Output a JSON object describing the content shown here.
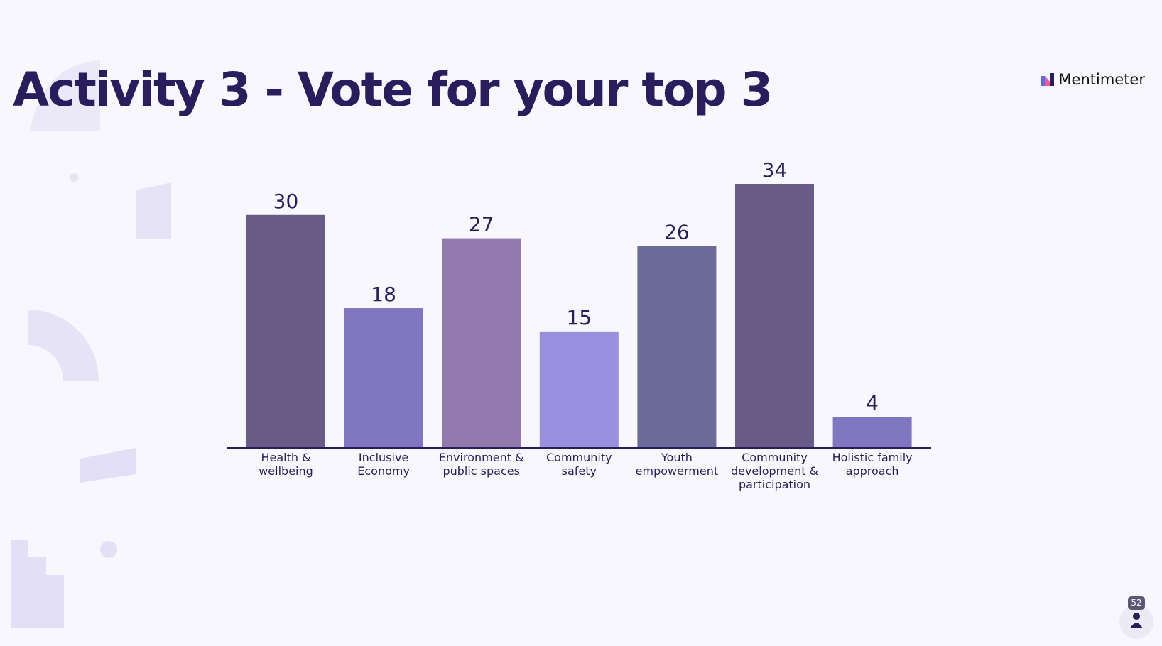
{
  "brand": "Mentimeter",
  "participants": 52,
  "chart_data": {
    "type": "bar",
    "title": "Activity 3 - Vote for your top 3",
    "categories": [
      "Health & wellbeing",
      "Inclusive Economy",
      "Environment & public spaces",
      "Community safety",
      "Youth empowerment",
      "Community development & participation",
      "Holistic family approach"
    ],
    "values": [
      30,
      18,
      27,
      15,
      26,
      34,
      4
    ],
    "colors": [
      "#685b87",
      "#8176c0",
      "#927aaf",
      "#9890de",
      "#6c6a98",
      "#685b87",
      "#8176c0"
    ]
  }
}
